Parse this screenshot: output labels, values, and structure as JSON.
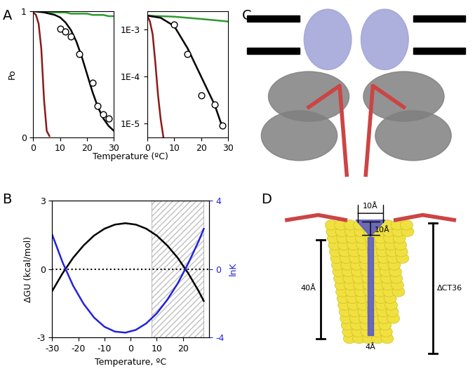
{
  "chart_data": [
    {
      "type": "line",
      "xlabel": "Temperature (ºC)",
      "ylabel": "Po",
      "xlim": [
        0,
        30
      ],
      "xticks": [
        0,
        10,
        20,
        30
      ],
      "ylim": [
        0,
        1
      ],
      "yticks": [
        0,
        1
      ],
      "series": [
        {
          "type": "line",
          "color": "#2e9a2e",
          "x": [
            0,
            2,
            4,
            6,
            8,
            10,
            12,
            14,
            16,
            18,
            20,
            22,
            24,
            26,
            28,
            30
          ],
          "values": [
            1.0,
            1.0,
            1.0,
            0.99,
            0.99,
            0.99,
            0.99,
            0.98,
            0.98,
            0.98,
            0.98,
            0.97,
            0.97,
            0.97,
            0.96,
            0.96
          ]
        },
        {
          "type": "line",
          "color": "#000000",
          "x": [
            0,
            2,
            4,
            6,
            8,
            10,
            12,
            14,
            16,
            18,
            20,
            22,
            24,
            26,
            28,
            30
          ],
          "values": [
            1.0,
            0.995,
            0.99,
            0.98,
            0.97,
            0.95,
            0.91,
            0.85,
            0.76,
            0.64,
            0.5,
            0.36,
            0.24,
            0.15,
            0.09,
            0.05
          ]
        },
        {
          "type": "line",
          "color": "#8b1a1a",
          "x": [
            0,
            1,
            2,
            3,
            4,
            5,
            6
          ],
          "values": [
            0.99,
            0.97,
            0.9,
            0.7,
            0.3,
            0.05,
            0.01
          ]
        },
        {
          "type": "scatter",
          "color": "#000000",
          "marker": "open_circle",
          "x": [
            10,
            12,
            14,
            17,
            22,
            24,
            26,
            28
          ],
          "values": [
            0.86,
            0.84,
            0.8,
            0.66,
            0.43,
            0.25,
            0.18,
            0.15
          ]
        }
      ]
    },
    {
      "type": "line",
      "log": "y",
      "xlim": [
        0,
        30
      ],
      "xticks": [
        0,
        10,
        20,
        30
      ],
      "ylim": [
        5e-06,
        0.0025
      ],
      "yticks": [
        {
          "value": 1e-05,
          "label": "1E-5"
        },
        {
          "value": 0.0001,
          "label": "1E-4"
        },
        {
          "value": 0.001,
          "label": "1E-3"
        }
      ],
      "series": [
        {
          "type": "line",
          "color": "#2e9a2e",
          "x": [
            0,
            5,
            10,
            15,
            20,
            25,
            30
          ],
          "values": [
            0.002,
            0.00195,
            0.0019,
            0.0018,
            0.0017,
            0.0016,
            0.0015
          ]
        },
        {
          "type": "line",
          "color": "#000000",
          "x": [
            0,
            5,
            10,
            15,
            20,
            25,
            28
          ],
          "values": [
            0.002,
            0.0018,
            0.0012,
            0.0004,
            0.0001,
            2.5e-05,
            8e-06
          ]
        },
        {
          "type": "line",
          "color": "#8b1a1a",
          "x": [
            0,
            1,
            2,
            3,
            4,
            5,
            6
          ],
          "values": [
            0.002,
            0.0015,
            0.0008,
            0.0002,
            4e-05,
            1.2e-05,
            5e-06
          ]
        },
        {
          "type": "scatter",
          "color": "#000000",
          "marker": "open_circle",
          "x": [
            10,
            15,
            20,
            25,
            28
          ],
          "values": [
            0.0013,
            0.0003,
            4e-05,
            2.5e-05,
            9e-06
          ]
        }
      ]
    },
    {
      "type": "line",
      "xlabel": "Temperature, ºC",
      "ylabel": "ΔGU (kcal/mol)",
      "y2label": "lnK",
      "xlim": [
        -30,
        30
      ],
      "xticks": [
        -30,
        -20,
        -10,
        0,
        10,
        20
      ],
      "ylim": [
        -3,
        3
      ],
      "yticks": [
        -3,
        0,
        3
      ],
      "y2lim": [
        -4,
        4
      ],
      "y2ticks": [
        -4,
        0,
        4
      ],
      "reference_line": 0,
      "shaded_region": [
        8,
        28
      ],
      "series": [
        {
          "type": "line",
          "color": "#000000",
          "x": [
            -30,
            -26,
            -22,
            -18,
            -14,
            -10,
            -6,
            -2,
            2,
            6,
            10,
            14,
            18,
            22,
            26,
            28
          ],
          "values": [
            -0.96,
            -0.18,
            0.49,
            1.03,
            1.46,
            1.76,
            1.94,
            2.0,
            1.94,
            1.76,
            1.46,
            1.03,
            0.49,
            -0.18,
            -0.96,
            -1.4
          ]
        },
        {
          "type": "line",
          "color": "#2222dd",
          "axis": "y2",
          "x": [
            -30,
            -26,
            -22,
            -18,
            -14,
            -10,
            -6,
            -2,
            2,
            6,
            10,
            14,
            18,
            22,
            26,
            28
          ],
          "values": [
            1.99,
            0.37,
            -0.98,
            -2.03,
            -2.83,
            -3.37,
            -3.65,
            -3.71,
            -3.55,
            -3.17,
            -2.59,
            -1.8,
            -0.85,
            0.31,
            1.61,
            2.34
          ]
        }
      ]
    }
  ],
  "panel_labels": [
    "A",
    "B",
    "C",
    "D"
  ],
  "diagram_D": {
    "labels": [
      "10Å",
      "10Å",
      "40Å",
      "4Å",
      "ΔCT36"
    ]
  }
}
